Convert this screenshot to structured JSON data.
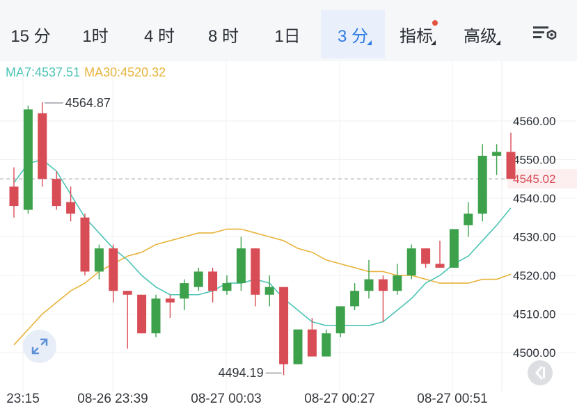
{
  "toolbar": {
    "tabs": [
      {
        "label": "15 分"
      },
      {
        "label": "1时"
      },
      {
        "label": "4 时"
      },
      {
        "label": "8 时"
      },
      {
        "label": "1日"
      },
      {
        "label": "3 分",
        "active": true
      },
      {
        "label": "指标"
      },
      {
        "label": "高级"
      }
    ],
    "settings_icon": "chart-settings-icon",
    "accent_color": "#2f7be5",
    "notification_dot_color": "#e3543e"
  },
  "legend": {
    "ma7": "MA7:4537.51",
    "ma30": "MA30:4520.32",
    "ma7_color": "#4cc4b4",
    "ma30_color": "#e8b33a"
  },
  "chart_data": {
    "type": "candlestick",
    "up_color": "#3ca14a",
    "down_color": "#d84c55",
    "ylim": [
      4492,
      4574
    ],
    "y_ticks": [
      4500.0,
      4510.0,
      4520.0,
      4530.0,
      4540.0,
      4550.0,
      4560.0
    ],
    "y_tick_labels": [
      "4500.00",
      "4510.00",
      "4520.00",
      "4530.00",
      "4540.00",
      "4550.00",
      "4560.00"
    ],
    "last_price": 4545.02,
    "last_price_label": "4545.02",
    "high_marker": {
      "value": 4564.87,
      "label": "4564.87"
    },
    "low_marker": {
      "value": 4494.19,
      "label": "4494.19"
    },
    "x_labels": [
      "23:15",
      "08-26 23:39",
      "08-27 00:03",
      "08-27 00:27",
      "08-27 00:51"
    ],
    "candles": [
      {
        "o": 4543.0,
        "h": 4548.0,
        "l": 4535.0,
        "c": 4538.0
      },
      {
        "o": 4537.0,
        "h": 4564.0,
        "l": 4536.0,
        "c": 4563.0
      },
      {
        "o": 4562.0,
        "h": 4564.87,
        "l": 4543.0,
        "c": 4545.0
      },
      {
        "o": 4545.0,
        "h": 4547.0,
        "l": 4537.0,
        "c": 4538.0
      },
      {
        "o": 4539.0,
        "h": 4543.0,
        "l": 4534.0,
        "c": 4536.0
      },
      {
        "o": 4535.0,
        "h": 4536.0,
        "l": 4520.0,
        "c": 4521.0
      },
      {
        "o": 4521.0,
        "h": 4528.0,
        "l": 4519.0,
        "c": 4527.0
      },
      {
        "o": 4527.0,
        "h": 4528.0,
        "l": 4513.0,
        "c": 4516.0
      },
      {
        "o": 4516.0,
        "h": 4516.0,
        "l": 4501.0,
        "c": 4515.0
      },
      {
        "o": 4515.0,
        "h": 4515.0,
        "l": 4505.0,
        "c": 4505.0
      },
      {
        "o": 4505.0,
        "h": 4515.0,
        "l": 4504.0,
        "c": 4514.0
      },
      {
        "o": 4514.0,
        "h": 4515.0,
        "l": 4509.0,
        "c": 4513.0
      },
      {
        "o": 4514.0,
        "h": 4519.0,
        "l": 4511.0,
        "c": 4518.0
      },
      {
        "o": 4517.0,
        "h": 4522.0,
        "l": 4516.0,
        "c": 4521.0
      },
      {
        "o": 4521.0,
        "h": 4522.0,
        "l": 4513.0,
        "c": 4516.0
      },
      {
        "o": 4516.0,
        "h": 4520.0,
        "l": 4515.0,
        "c": 4518.0
      },
      {
        "o": 4518.0,
        "h": 4530.0,
        "l": 4516.0,
        "c": 4527.0
      },
      {
        "o": 4527.0,
        "h": 4527.0,
        "l": 4512.0,
        "c": 4515.0
      },
      {
        "o": 4515.0,
        "h": 4520.0,
        "l": 4512.0,
        "c": 4517.0
      },
      {
        "o": 4517.0,
        "h": 4517.0,
        "l": 4494.19,
        "c": 4497.0
      },
      {
        "o": 4497.0,
        "h": 4506.0,
        "l": 4497.0,
        "c": 4506.0
      },
      {
        "o": 4506.0,
        "h": 4509.0,
        "l": 4499.0,
        "c": 4499.0
      },
      {
        "o": 4499.0,
        "h": 4506.0,
        "l": 4499.0,
        "c": 4505.0
      },
      {
        "o": 4505.0,
        "h": 4512.0,
        "l": 4504.0,
        "c": 4512.0
      },
      {
        "o": 4512.0,
        "h": 4518.0,
        "l": 4511.0,
        "c": 4516.0
      },
      {
        "o": 4516.0,
        "h": 4524.0,
        "l": 4514.0,
        "c": 4519.0
      },
      {
        "o": 4519.0,
        "h": 4520.0,
        "l": 4508.0,
        "c": 4516.0
      },
      {
        "o": 4516.0,
        "h": 4523.0,
        "l": 4515.0,
        "c": 4520.0
      },
      {
        "o": 4520.0,
        "h": 4528.0,
        "l": 4519.0,
        "c": 4527.0
      },
      {
        "o": 4527.0,
        "h": 4527.0,
        "l": 4522.0,
        "c": 4523.0
      },
      {
        "o": 4523.0,
        "h": 4529.0,
        "l": 4522.0,
        "c": 4522.0
      },
      {
        "o": 4522.0,
        "h": 4532.0,
        "l": 4522.0,
        "c": 4532.0
      },
      {
        "o": 4533.0,
        "h": 4539.0,
        "l": 4530.0,
        "c": 4536.0
      },
      {
        "o": 4536.0,
        "h": 4554.0,
        "l": 4534.0,
        "c": 4551.0
      },
      {
        "o": 4551.0,
        "h": 4554.0,
        "l": 4546.0,
        "c": 4552.0
      },
      {
        "o": 4552.0,
        "h": 4557.0,
        "l": 4545.02,
        "c": 4545.02
      }
    ],
    "ma7": [
      4544,
      4549,
      4550,
      4547,
      4541,
      4535,
      4531,
      4527,
      4524,
      4520,
      4517,
      4515,
      4515,
      4515,
      4516,
      4518,
      4518,
      4519,
      4518,
      4514,
      4511,
      4508,
      4507,
      4507,
      4507,
      4507,
      4508,
      4511,
      4514,
      4518,
      4520,
      4523,
      4525,
      4529,
      4533,
      4537.51
    ],
    "ma30": [
      4502,
      4506,
      4510,
      4513,
      4516,
      4518,
      4521,
      4523,
      4525,
      4526,
      4528,
      4529,
      4530,
      4531,
      4531,
      4532,
      4532,
      4531,
      4530,
      4529,
      4527,
      4526,
      4524,
      4523,
      4522,
      4521,
      4521,
      4520,
      4520,
      4519,
      4518,
      4518,
      4518,
      4519,
      4519,
      4520.32
    ]
  }
}
